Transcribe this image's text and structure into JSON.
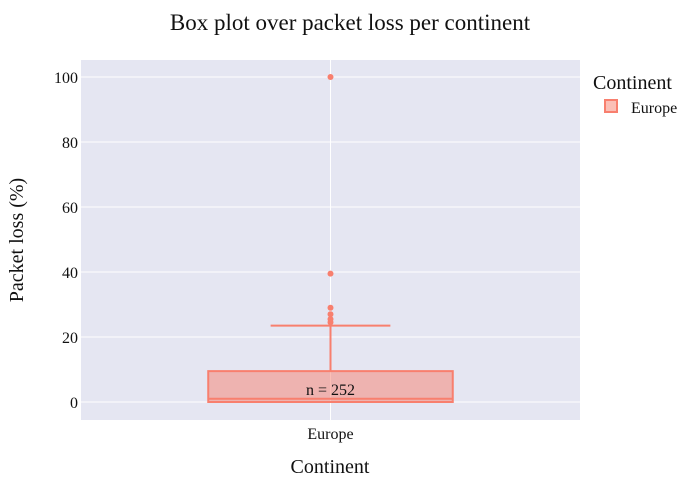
{
  "chart_data": {
    "type": "box",
    "title": "Box plot over packet loss per continent",
    "xlabel": "Continent",
    "ylabel": "Packet loss (%)",
    "ylim": [
      -5,
      105
    ],
    "yticks": [
      0,
      20,
      40,
      60,
      80,
      100
    ],
    "grid": true,
    "legend": {
      "title": "Continent",
      "position": "top-right",
      "entries": [
        "Europe"
      ]
    },
    "color": "#F87F6E",
    "categories": [
      "Europe"
    ],
    "series": [
      {
        "name": "Europe",
        "min": 0,
        "q1": 0,
        "median": 1,
        "q3": 9.5,
        "whisker_high": 23.5,
        "outliers": [
          24.5,
          25.5,
          27,
          29,
          39.5,
          100
        ],
        "annotation": "n = 252"
      }
    ]
  }
}
